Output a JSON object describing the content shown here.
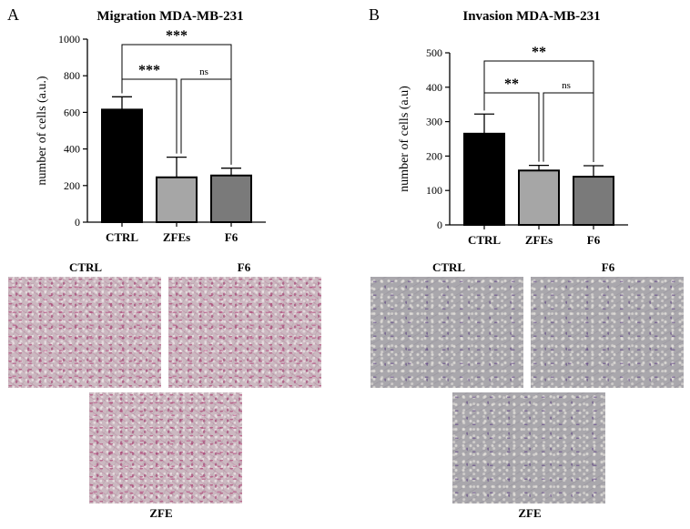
{
  "figure": {
    "panel_a_letter": "A",
    "panel_b_letter": "B"
  },
  "chart_data": [
    {
      "type": "bar",
      "title": "Migration MDA-MB-231",
      "xlabel": "",
      "ylabel": "number of cells (a.u.)",
      "categories": [
        "CTRL",
        "ZFEs",
        "F6"
      ],
      "values": [
        615,
        245,
        255
      ],
      "errors": [
        70,
        110,
        40
      ],
      "bar_colors": [
        "#000000",
        "#a6a6a6",
        "#7a7a7a"
      ],
      "ylim": [
        0,
        1000
      ],
      "yticks": [
        "0",
        "200",
        "400",
        "600",
        "800",
        "1000"
      ],
      "significance": [
        {
          "from": "CTRL",
          "to": "ZFEs",
          "label": "***",
          "bold": true
        },
        {
          "from": "ZFEs",
          "to": "F6",
          "label": "ns",
          "bold": false
        },
        {
          "from": "CTRL",
          "to": "F6",
          "label": "***",
          "bold": true
        }
      ]
    },
    {
      "type": "bar",
      "title": "Invasion MDA-MB-231",
      "xlabel": "",
      "ylabel": "number of cells (a.u)",
      "categories": [
        "CTRL",
        "ZFEs",
        "F6"
      ],
      "values": [
        265,
        158,
        140
      ],
      "errors": [
        57,
        15,
        32
      ],
      "bar_colors": [
        "#000000",
        "#a6a6a6",
        "#7a7a7a"
      ],
      "ylim": [
        0,
        500
      ],
      "yticks": [
        "0",
        "100",
        "200",
        "300",
        "400",
        "500"
      ],
      "significance": [
        {
          "from": "CTRL",
          "to": "ZFEs",
          "label": "**",
          "bold": true
        },
        {
          "from": "ZFEs",
          "to": "F6",
          "label": "ns",
          "bold": false
        },
        {
          "from": "CTRL",
          "to": "F6",
          "label": "**",
          "bold": true
        }
      ]
    }
  ],
  "micrographs": {
    "migration": {
      "ctrl_label": "CTRL",
      "f6_label": "F6",
      "zfe_label": "ZFE",
      "stain_color": "#cbb8c0"
    },
    "invasion": {
      "ctrl_label": "CTRL",
      "f6_label": "F6",
      "zfe_label": "ZFE",
      "stain_color": "#a9a7ac"
    }
  }
}
